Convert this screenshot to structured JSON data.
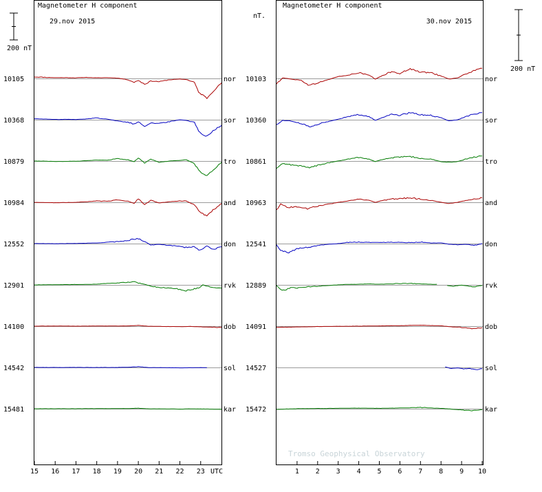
{
  "chart_data": {
    "type": "line",
    "title": "Magnetometer H component",
    "unit_label": "nT.",
    "scale_bar_label": "200 nT",
    "watermark": "Tromso Geophysical Observatory",
    "x_unit_label": "UTC",
    "colors": {
      "red": "#aa0000",
      "blue": "#0000c0",
      "green": "#007a00"
    },
    "stations": [
      {
        "code": "nor",
        "color": "red"
      },
      {
        "code": "sor",
        "color": "blue"
      },
      {
        "code": "tro",
        "color": "green"
      },
      {
        "code": "and",
        "color": "red"
      },
      {
        "code": "don",
        "color": "blue"
      },
      {
        "code": "rvk",
        "color": "green"
      },
      {
        "code": "dob",
        "color": "red"
      },
      {
        "code": "sol",
        "color": "blue"
      },
      {
        "code": "kar",
        "color": "green"
      }
    ],
    "panels": [
      {
        "date": "29.nov 2015",
        "x_range": [
          15,
          24
        ],
        "x_ticks": [
          "15",
          "16",
          "17",
          "18",
          "19",
          "20",
          "21",
          "22",
          "23"
        ],
        "baselines": [
          "10105",
          "10368",
          "10879",
          "10984",
          "12552",
          "12901",
          "14100",
          "14542",
          "15481"
        ],
        "series": [
          {
            "station": "nor",
            "x": [
              15,
              15.5,
              16,
              16.5,
              17,
              17.5,
              18,
              18.5,
              19,
              19.5,
              19.8,
              20,
              20.3,
              20.6,
              21,
              21.5,
              22,
              22.3,
              22.7,
              22.9,
              23.1,
              23.3,
              23.6,
              24
            ],
            "y": [
              12,
              9,
              6,
              6,
              5,
              8,
              5,
              6,
              3,
              -10,
              -30,
              -15,
              -45,
              -20,
              -25,
              -10,
              -5,
              -8,
              -30,
              -110,
              -130,
              -155,
              -100,
              -35
            ]
          },
          {
            "station": "sor",
            "x": [
              15,
              15.5,
              16,
              16.5,
              17,
              17.5,
              18,
              18.5,
              19,
              19.5,
              19.8,
              20,
              20.3,
              20.6,
              21,
              21.5,
              22,
              22.3,
              22.7,
              22.9,
              23.1,
              23.3,
              23.6,
              24
            ],
            "y": [
              8,
              5,
              2,
              3,
              2,
              6,
              15,
              5,
              -10,
              -20,
              -35,
              -15,
              -50,
              -25,
              -30,
              -15,
              0,
              -5,
              -20,
              -90,
              -115,
              -130,
              -85,
              -45
            ]
          },
          {
            "station": "tro",
            "x": [
              15,
              15.5,
              16,
              16.5,
              17,
              17.5,
              18,
              18.5,
              19,
              19.5,
              19.8,
              20,
              20.3,
              20.6,
              21,
              21.5,
              22,
              22.3,
              22.7,
              22.9,
              23.1,
              23.3,
              23.6,
              24
            ],
            "y": [
              0,
              -1,
              -4,
              -3,
              -2,
              3,
              8,
              6,
              20,
              10,
              -5,
              25,
              -15,
              15,
              -10,
              0,
              5,
              10,
              -20,
              -70,
              -100,
              -115,
              -70,
              -10
            ]
          },
          {
            "station": "and",
            "x": [
              15,
              15.5,
              16,
              16.5,
              17,
              17.5,
              18,
              18.5,
              19,
              19.5,
              19.8,
              20,
              20.3,
              20.6,
              21,
              21.5,
              22,
              22.3,
              22.7,
              22.9,
              23.1,
              23.3,
              23.6,
              24
            ],
            "y": [
              0,
              -2,
              -3,
              -2,
              0,
              5,
              10,
              8,
              20,
              10,
              -10,
              30,
              -20,
              15,
              -5,
              5,
              10,
              10,
              -20,
              -65,
              -90,
              -105,
              -60,
              -10
            ]
          },
          {
            "station": "don",
            "x": [
              15,
              15.5,
              16,
              16.5,
              17,
              17.5,
              18,
              18.5,
              19,
              19.5,
              19.8,
              20,
              20.3,
              20.6,
              21,
              21.5,
              22,
              22.3,
              22.7,
              22.9,
              23.1,
              23.3,
              23.6,
              24
            ],
            "y": [
              0,
              0,
              -1,
              0,
              1,
              3,
              5,
              10,
              15,
              25,
              35,
              40,
              15,
              -10,
              -5,
              -15,
              -20,
              -30,
              -25,
              -50,
              -40,
              -20,
              -45,
              -25
            ]
          },
          {
            "station": "rvk",
            "x": [
              15,
              15.5,
              16,
              16.5,
              17,
              17.5,
              18,
              18.5,
              19,
              19.5,
              19.8,
              20,
              20.3,
              20.6,
              21,
              21.5,
              22,
              22.3,
              22.7,
              22.9,
              23.1,
              23.3,
              23.6,
              24
            ],
            "y": [
              0,
              1,
              1,
              2,
              3,
              4,
              6,
              10,
              15,
              20,
              25,
              15,
              5,
              -10,
              -20,
              -25,
              -35,
              -45,
              -30,
              -25,
              0,
              -10,
              -20,
              -25
            ]
          },
          {
            "station": "dob",
            "x": [
              15,
              16,
              17,
              18,
              19,
              19.5,
              20,
              20.5,
              21,
              21.5,
              22,
              22.5,
              23,
              23.5,
              24
            ],
            "y": [
              0,
              1,
              0,
              1,
              1,
              2,
              6,
              -1,
              -2,
              -3,
              -4,
              -2,
              -5,
              -8,
              -10
            ]
          },
          {
            "station": "sol",
            "x": [
              15,
              16,
              17,
              18,
              19,
              19.5,
              20,
              20.5,
              21,
              21.5,
              22,
              22.5,
              23,
              23.3
            ],
            "y": [
              0,
              0,
              0,
              0,
              0,
              2,
              6,
              -1,
              -1,
              -2,
              -3,
              -2,
              -1,
              -2
            ]
          },
          {
            "station": "kar",
            "x": [
              15,
              16,
              17,
              18,
              19,
              19.5,
              20,
              20.5,
              21,
              21.5,
              22,
              22.5,
              23,
              23.5,
              24
            ],
            "y": [
              0,
              0,
              0,
              1,
              1,
              2,
              4,
              -1,
              -1,
              -2,
              -3,
              -1,
              -2,
              -3,
              -4
            ]
          }
        ]
      },
      {
        "date": "30.nov 2015",
        "x_range": [
          0,
          10
        ],
        "x_ticks": [
          "1",
          "2",
          "3",
          "4",
          "5",
          "6",
          "7",
          "8",
          "9",
          "10"
        ],
        "baselines": [
          "10103",
          "10360",
          "10861",
          "10963",
          "12541",
          "12889",
          "14091",
          "14527",
          "15472"
        ],
        "series": [
          {
            "station": "nor",
            "x": [
              0,
              0.3,
              0.7,
              1.2,
              1.6,
              2,
              2.5,
              3,
              3.5,
              4,
              4.5,
              4.8,
              5.2,
              5.6,
              6,
              6.5,
              7,
              7.5,
              8,
              8.4,
              8.8,
              9.2,
              9.6,
              10
            ],
            "y": [
              -45,
              5,
              -5,
              -15,
              -55,
              -35,
              -10,
              15,
              25,
              45,
              25,
              -5,
              25,
              55,
              40,
              75,
              50,
              45,
              20,
              -5,
              5,
              35,
              60,
              80
            ]
          },
          {
            "station": "sor",
            "x": [
              0,
              0.3,
              0.7,
              1.2,
              1.6,
              2,
              2.5,
              3,
              3.5,
              4,
              4.5,
              4.8,
              5.2,
              5.6,
              6,
              6.5,
              7,
              7.5,
              8,
              8.4,
              8.8,
              9.2,
              9.6,
              10
            ],
            "y": [
              -40,
              -5,
              -10,
              -30,
              -55,
              -35,
              -15,
              5,
              25,
              40,
              25,
              -5,
              20,
              45,
              35,
              55,
              40,
              35,
              15,
              -10,
              0,
              25,
              45,
              55
            ]
          },
          {
            "station": "tro",
            "x": [
              0,
              0.3,
              0.7,
              1.2,
              1.6,
              2,
              2.5,
              3,
              3.5,
              4,
              4.5,
              4.8,
              5.2,
              5.6,
              6,
              6.5,
              7,
              7.5,
              8,
              8.4,
              8.8,
              9.2,
              9.6,
              10
            ],
            "y": [
              -60,
              -20,
              -30,
              -40,
              -50,
              -35,
              -15,
              0,
              15,
              30,
              15,
              -5,
              15,
              25,
              30,
              35,
              20,
              15,
              -5,
              -10,
              -5,
              15,
              30,
              40
            ]
          },
          {
            "station": "and",
            "x": [
              0,
              0.2,
              0.5,
              1,
              1.5,
              2,
              2.5,
              3,
              3.5,
              4,
              4.5,
              4.8,
              5.2,
              5.6,
              6,
              6.5,
              7,
              7.5,
              8,
              8.4,
              8.8,
              9.2,
              9.6,
              10
            ],
            "y": [
              -60,
              -10,
              -40,
              -35,
              -50,
              -30,
              -15,
              0,
              10,
              25,
              15,
              0,
              15,
              25,
              30,
              35,
              25,
              15,
              0,
              -10,
              0,
              15,
              25,
              35
            ]
          },
          {
            "station": "don",
            "x": [
              0,
              0.2,
              0.6,
              1,
              1.5,
              2,
              2.5,
              3,
              3.5,
              4,
              4.5,
              5,
              5.5,
              6,
              6.5,
              7,
              7.5,
              8,
              8.4,
              8.8,
              9.2,
              9.6,
              10
            ],
            "y": [
              -10,
              -55,
              -70,
              -40,
              -30,
              -15,
              -5,
              0,
              10,
              12,
              10,
              8,
              12,
              10,
              8,
              12,
              5,
              5,
              -5,
              -10,
              -5,
              -15,
              0
            ]
          },
          {
            "station": "rvk",
            "x": [
              0,
              0.2,
              0.4,
              0.7,
              1,
              1.5,
              2,
              2.5,
              3,
              3.5,
              4,
              4.5,
              5,
              5.5,
              6,
              6.5,
              7,
              7.5,
              7.8
            ],
            "y": [
              -5,
              -40,
              -45,
              -20,
              -25,
              -15,
              -10,
              -5,
              0,
              5,
              5,
              8,
              5,
              8,
              10,
              12,
              8,
              5,
              5
            ]
          },
          {
            "station": "rvk",
            "x": [
              8.3,
              8.6,
              9,
              9.3,
              9.6,
              10
            ],
            "y": [
              -5,
              -10,
              -2,
              -8,
              -15,
              -5
            ]
          },
          {
            "station": "dob",
            "x": [
              0,
              0.5,
              1,
              1.5,
              2,
              3,
              4,
              5,
              6,
              6.5,
              7,
              7.5,
              8,
              8.5,
              9,
              9.5,
              10
            ],
            "y": [
              -10,
              -8,
              -6,
              -5,
              -3,
              -1,
              0,
              2,
              4,
              6,
              8,
              5,
              3,
              -5,
              -10,
              -20,
              -12
            ]
          },
          {
            "station": "sol",
            "x": [
              8.2,
              8.5,
              8.8,
              9.1,
              9.4,
              9.7,
              10
            ],
            "y": [
              4,
              -8,
              -3,
              -12,
              -8,
              -18,
              -10
            ]
          },
          {
            "station": "kar",
            "x": [
              0,
              1,
              2,
              3,
              4,
              5,
              6,
              6.5,
              7,
              7.5,
              8,
              8.5,
              9,
              9.5,
              10
            ],
            "y": [
              -5,
              0,
              2,
              3,
              5,
              3,
              6,
              8,
              10,
              6,
              3,
              -3,
              -10,
              -15,
              -8
            ]
          }
        ]
      }
    ]
  }
}
